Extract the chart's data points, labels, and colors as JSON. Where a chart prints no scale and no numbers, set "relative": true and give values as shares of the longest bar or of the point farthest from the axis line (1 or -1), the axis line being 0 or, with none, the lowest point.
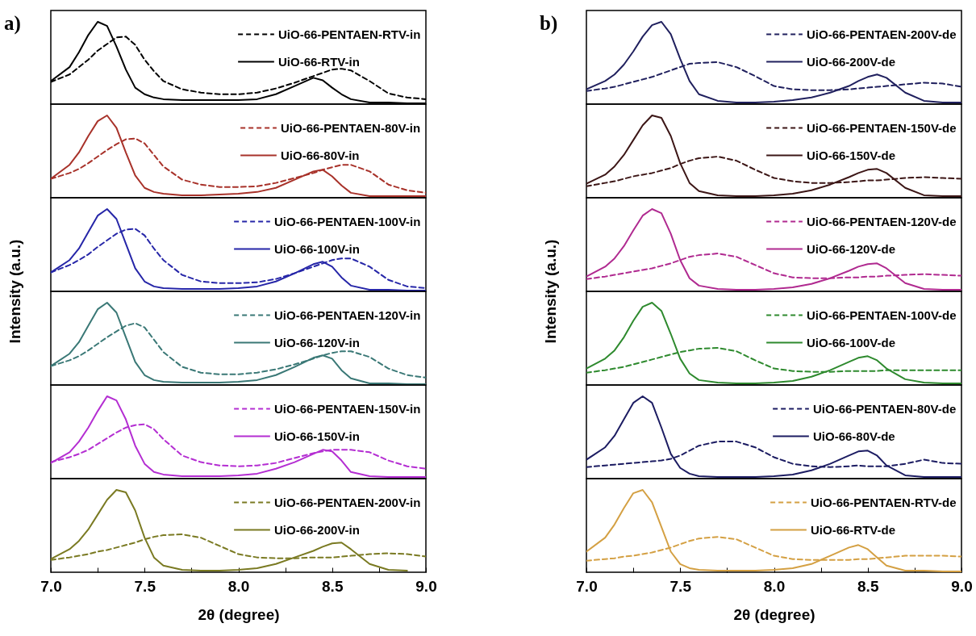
{
  "chart_data": [
    {
      "type": "line",
      "relative": true,
      "legend": "top right",
      "tick_labels": false,
      "xlim": [
        7.0,
        9.0
      ],
      "annotations": [
        "a)"
      ],
      "x": [
        7.0,
        7.1,
        7.15,
        7.2,
        7.25,
        7.3,
        7.35,
        7.4,
        7.45,
        7.5,
        7.55,
        7.6,
        7.7,
        7.8,
        7.9,
        8.0,
        8.1,
        8.2,
        8.3,
        8.4,
        8.45,
        8.5,
        8.55,
        8.6,
        8.7,
        8.8,
        8.9,
        9.0
      ],
      "series": [
        {
          "name": "UiO-66-PENTAEN-RTV-in",
          "color": "#000000",
          "line_style": "dashed",
          "values": [
            0.27,
            0.36,
            0.45,
            0.54,
            0.65,
            0.73,
            0.81,
            0.82,
            0.72,
            0.54,
            0.4,
            0.28,
            0.18,
            0.14,
            0.12,
            0.12,
            0.14,
            0.19,
            0.26,
            0.34,
            0.38,
            0.42,
            0.43,
            0.41,
            0.28,
            0.13,
            0.08,
            0.06
          ]
        },
        {
          "name": "UiO-66-RTV-in",
          "color": "#000000",
          "line_style": "solid",
          "values": [
            0.28,
            0.45,
            0.63,
            0.84,
            1.0,
            0.95,
            0.7,
            0.42,
            0.2,
            0.12,
            0.08,
            0.06,
            0.05,
            0.05,
            0.05,
            0.05,
            0.06,
            0.12,
            0.22,
            0.32,
            0.29,
            0.2,
            0.12,
            0.06,
            0.02,
            0.02,
            0.01,
            0.01
          ]
        }
      ]
    },
    {
      "type": "line",
      "relative": true,
      "legend": "top right",
      "tick_labels": false,
      "xlim": [
        7.0,
        9.0
      ],
      "x": [
        7.0,
        7.1,
        7.15,
        7.2,
        7.25,
        7.3,
        7.35,
        7.4,
        7.45,
        7.5,
        7.55,
        7.6,
        7.7,
        7.8,
        7.9,
        8.0,
        8.1,
        8.2,
        8.3,
        8.4,
        8.45,
        8.5,
        8.55,
        8.6,
        8.7,
        8.8,
        8.9,
        9.0
      ],
      "series": [
        {
          "name": "UiO-66-PENTAEN-80V-in",
          "color": "#a8322a",
          "line_style": "dashed",
          "values": [
            0.23,
            0.3,
            0.35,
            0.42,
            0.5,
            0.58,
            0.65,
            0.71,
            0.72,
            0.66,
            0.52,
            0.38,
            0.22,
            0.16,
            0.13,
            0.13,
            0.14,
            0.18,
            0.24,
            0.3,
            0.34,
            0.37,
            0.4,
            0.4,
            0.32,
            0.16,
            0.09,
            0.06
          ]
        },
        {
          "name": "UiO-66-80V-in",
          "color": "#a8322a",
          "line_style": "solid",
          "values": [
            0.23,
            0.4,
            0.55,
            0.75,
            0.93,
            1.0,
            0.85,
            0.55,
            0.27,
            0.12,
            0.07,
            0.05,
            0.03,
            0.03,
            0.04,
            0.05,
            0.07,
            0.12,
            0.22,
            0.32,
            0.34,
            0.26,
            0.15,
            0.06,
            0.02,
            0.02,
            0.02,
            0.02
          ]
        }
      ]
    },
    {
      "type": "line",
      "relative": true,
      "legend": "top right",
      "tick_labels": false,
      "xlim": [
        7.0,
        9.0
      ],
      "ylabel": "Intensity (a.u.)",
      "x": [
        7.0,
        7.1,
        7.15,
        7.2,
        7.25,
        7.3,
        7.35,
        7.4,
        7.45,
        7.5,
        7.55,
        7.6,
        7.7,
        7.8,
        7.9,
        8.0,
        8.1,
        8.2,
        8.3,
        8.4,
        8.45,
        8.5,
        8.55,
        8.6,
        8.7,
        8.8,
        8.9,
        9.0
      ],
      "series": [
        {
          "name": "UiO-66-PENTAEN-100V-in",
          "color": "#2626a8",
          "line_style": "dashed",
          "values": [
            0.23,
            0.32,
            0.38,
            0.45,
            0.54,
            0.62,
            0.7,
            0.75,
            0.76,
            0.68,
            0.52,
            0.38,
            0.2,
            0.12,
            0.1,
            0.1,
            0.11,
            0.15,
            0.22,
            0.3,
            0.34,
            0.38,
            0.4,
            0.4,
            0.3,
            0.14,
            0.06,
            0.04
          ]
        },
        {
          "name": "UiO-66-100V-in",
          "color": "#2626a8",
          "line_style": "solid",
          "values": [
            0.23,
            0.38,
            0.52,
            0.72,
            0.92,
            1.0,
            0.88,
            0.58,
            0.28,
            0.12,
            0.06,
            0.04,
            0.03,
            0.03,
            0.03,
            0.04,
            0.06,
            0.12,
            0.22,
            0.33,
            0.36,
            0.3,
            0.17,
            0.07,
            0.02,
            0.02,
            0.01,
            0.01
          ]
        }
      ]
    },
    {
      "type": "line",
      "relative": true,
      "legend": "top right",
      "tick_labels": false,
      "xlim": [
        7.0,
        9.0
      ],
      "x": [
        7.0,
        7.1,
        7.15,
        7.2,
        7.25,
        7.3,
        7.35,
        7.4,
        7.45,
        7.5,
        7.55,
        7.6,
        7.7,
        7.8,
        7.9,
        8.0,
        8.1,
        8.2,
        8.3,
        8.4,
        8.45,
        8.5,
        8.55,
        8.6,
        8.7,
        8.8,
        8.9,
        9.0
      ],
      "series": [
        {
          "name": "UiO-66-PENTAEN-120V-in",
          "color": "#3a7876",
          "line_style": "dashed",
          "values": [
            0.23,
            0.3,
            0.35,
            0.42,
            0.5,
            0.58,
            0.65,
            0.72,
            0.75,
            0.7,
            0.55,
            0.4,
            0.22,
            0.15,
            0.13,
            0.13,
            0.15,
            0.19,
            0.25,
            0.32,
            0.36,
            0.39,
            0.41,
            0.41,
            0.34,
            0.2,
            0.12,
            0.09
          ]
        },
        {
          "name": "UiO-66-120V-in",
          "color": "#3a7876",
          "line_style": "solid",
          "values": [
            0.23,
            0.38,
            0.52,
            0.72,
            0.92,
            1.0,
            0.88,
            0.58,
            0.28,
            0.12,
            0.06,
            0.04,
            0.03,
            0.03,
            0.03,
            0.04,
            0.06,
            0.12,
            0.22,
            0.33,
            0.36,
            0.32,
            0.18,
            0.08,
            0.02,
            0.02,
            0.01,
            0.01
          ]
        }
      ]
    },
    {
      "type": "line",
      "relative": true,
      "legend": "top right",
      "tick_labels": false,
      "xlim": [
        7.0,
        9.0
      ],
      "x": [
        7.0,
        7.1,
        7.15,
        7.2,
        7.25,
        7.3,
        7.35,
        7.4,
        7.45,
        7.5,
        7.55,
        7.6,
        7.7,
        7.8,
        7.9,
        8.0,
        8.1,
        8.2,
        8.3,
        8.4,
        8.45,
        8.5,
        8.55,
        8.6,
        8.7,
        8.8,
        8.9,
        9.0
      ],
      "series": [
        {
          "name": "UiO-66-PENTAEN-150V-in",
          "color": "#b42ed2",
          "line_style": "dashed",
          "values": [
            0.2,
            0.26,
            0.3,
            0.35,
            0.42,
            0.49,
            0.56,
            0.62,
            0.65,
            0.66,
            0.6,
            0.48,
            0.28,
            0.2,
            0.16,
            0.15,
            0.16,
            0.19,
            0.25,
            0.31,
            0.33,
            0.35,
            0.35,
            0.35,
            0.32,
            0.22,
            0.15,
            0.12
          ]
        },
        {
          "name": "UiO-66-150V-in",
          "color": "#b42ed2",
          "line_style": "solid",
          "values": [
            0.19,
            0.32,
            0.45,
            0.62,
            0.82,
            1.0,
            0.95,
            0.72,
            0.4,
            0.18,
            0.08,
            0.05,
            0.03,
            0.03,
            0.03,
            0.04,
            0.06,
            0.12,
            0.2,
            0.3,
            0.35,
            0.33,
            0.22,
            0.08,
            0.03,
            0.02,
            0.02,
            0.02
          ]
        }
      ]
    },
    {
      "type": "line",
      "relative": true,
      "legend": "top right",
      "tick_labels": "x",
      "xlim": [
        7.0,
        9.0
      ],
      "xlabel": "2θ (degree)",
      "xticks": [
        {
          "value": 7.0,
          "label": "7.0"
        },
        {
          "value": 7.25,
          "label": null
        },
        {
          "value": 7.5,
          "label": "7.5"
        },
        {
          "value": 7.75,
          "label": null
        },
        {
          "value": 8.0,
          "label": "8.0"
        },
        {
          "value": 8.25,
          "label": null
        },
        {
          "value": 8.5,
          "label": "8.5"
        },
        {
          "value": 8.75,
          "label": null
        },
        {
          "value": 9.0,
          "label": "9.0"
        }
      ],
      "x": [
        7.0,
        7.1,
        7.15,
        7.2,
        7.25,
        7.3,
        7.35,
        7.4,
        7.45,
        7.5,
        7.55,
        7.6,
        7.7,
        7.8,
        7.9,
        8.0,
        8.1,
        8.2,
        8.3,
        8.4,
        8.45,
        8.5,
        8.55,
        8.6,
        8.7,
        8.8,
        8.9,
        9.0
      ],
      "series": [
        {
          "name": "UiO-66-PENTAEN-200V-in",
          "color": "#7a7a22",
          "line_style": "dashed",
          "values": [
            0.15,
            0.18,
            0.2,
            0.22,
            0.25,
            0.27,
            0.3,
            0.33,
            0.36,
            0.4,
            0.43,
            0.45,
            0.46,
            0.42,
            0.32,
            0.22,
            0.18,
            0.17,
            0.17,
            0.18,
            0.18,
            0.18,
            0.19,
            0.2,
            0.22,
            0.23,
            0.22,
            0.19
          ]
        },
        {
          "name": "UiO-66-200V-in",
          "color": "#7a7a22",
          "line_style": "solid",
          "values": [
            0.16,
            0.28,
            0.38,
            0.52,
            0.7,
            0.88,
            1.0,
            0.97,
            0.75,
            0.42,
            0.18,
            0.08,
            0.03,
            0.02,
            0.02,
            0.03,
            0.05,
            0.1,
            0.18,
            0.26,
            0.31,
            0.35,
            0.36,
            0.28,
            0.1,
            0.03,
            0.02,
            null
          ]
        }
      ]
    },
    {
      "type": "line",
      "relative": true,
      "legend": "top right",
      "tick_labels": false,
      "xlim": [
        7.0,
        9.0
      ],
      "annotations": [
        "b)"
      ],
      "x": [
        7.0,
        7.1,
        7.15,
        7.2,
        7.25,
        7.3,
        7.35,
        7.4,
        7.45,
        7.5,
        7.55,
        7.6,
        7.7,
        7.8,
        7.9,
        8.0,
        8.1,
        8.2,
        8.3,
        8.4,
        8.45,
        8.5,
        8.55,
        8.6,
        8.7,
        8.8,
        8.9,
        9.0
      ],
      "series": [
        {
          "name": "UiO-66-PENTAEN-200V-de",
          "color": "#20205e",
          "line_style": "dashed",
          "values": [
            0.16,
            0.19,
            0.21,
            0.24,
            0.27,
            0.3,
            0.33,
            0.37,
            0.41,
            0.45,
            0.49,
            0.5,
            0.51,
            0.45,
            0.34,
            0.22,
            0.18,
            0.17,
            0.17,
            0.18,
            0.19,
            0.2,
            0.21,
            0.22,
            0.24,
            0.26,
            0.25,
            0.21
          ]
        },
        {
          "name": "UiO-66-200V-de",
          "color": "#20205e",
          "line_style": "solid",
          "values": [
            0.18,
            0.28,
            0.36,
            0.48,
            0.64,
            0.82,
            0.96,
            1.0,
            0.85,
            0.55,
            0.28,
            0.12,
            0.04,
            0.02,
            0.02,
            0.03,
            0.05,
            0.08,
            0.14,
            0.22,
            0.28,
            0.33,
            0.36,
            0.32,
            0.14,
            0.04,
            0.02,
            0.02
          ]
        }
      ]
    },
    {
      "type": "line",
      "relative": true,
      "legend": "top right",
      "tick_labels": false,
      "xlim": [
        7.0,
        9.0
      ],
      "x": [
        7.0,
        7.1,
        7.15,
        7.2,
        7.25,
        7.3,
        7.35,
        7.4,
        7.45,
        7.5,
        7.55,
        7.6,
        7.7,
        7.8,
        7.9,
        8.0,
        8.1,
        8.2,
        8.3,
        8.4,
        8.45,
        8.5,
        8.55,
        8.6,
        8.7,
        8.8,
        8.9,
        9.0
      ],
      "series": [
        {
          "name": "UiO-66-PENTAEN-150V-de",
          "color": "#3c1616",
          "line_style": "dashed",
          "values": [
            0.14,
            0.18,
            0.2,
            0.23,
            0.26,
            0.28,
            0.3,
            0.33,
            0.36,
            0.41,
            0.45,
            0.48,
            0.5,
            0.45,
            0.34,
            0.24,
            0.2,
            0.18,
            0.18,
            0.19,
            0.2,
            0.21,
            0.21,
            0.22,
            0.24,
            0.25,
            0.24,
            0.23
          ]
        },
        {
          "name": "UiO-66-150V-de",
          "color": "#3c1616",
          "line_style": "solid",
          "values": [
            0.17,
            0.28,
            0.38,
            0.52,
            0.7,
            0.88,
            1.0,
            0.97,
            0.75,
            0.42,
            0.18,
            0.08,
            0.03,
            0.02,
            0.02,
            0.03,
            0.05,
            0.09,
            0.16,
            0.25,
            0.3,
            0.34,
            0.35,
            0.3,
            0.12,
            0.03,
            0.02,
            0.02
          ]
        }
      ]
    },
    {
      "type": "line",
      "relative": true,
      "legend": "top right",
      "tick_labels": false,
      "xlim": [
        7.0,
        9.0
      ],
      "ylabel": "Intensity (a.u.)",
      "x": [
        7.0,
        7.1,
        7.15,
        7.2,
        7.25,
        7.3,
        7.35,
        7.4,
        7.45,
        7.5,
        7.55,
        7.6,
        7.7,
        7.8,
        7.9,
        8.0,
        8.1,
        8.2,
        8.3,
        8.4,
        8.45,
        8.5,
        8.55,
        8.6,
        8.7,
        8.8,
        8.9,
        9.0
      ],
      "series": [
        {
          "name": "UiO-66-PENTAEN-120V-de",
          "color": "#b02a90",
          "line_style": "dashed",
          "values": [
            0.15,
            0.18,
            0.2,
            0.22,
            0.24,
            0.26,
            0.28,
            0.31,
            0.34,
            0.38,
            0.42,
            0.44,
            0.46,
            0.42,
            0.32,
            0.22,
            0.17,
            0.16,
            0.16,
            0.17,
            0.17,
            0.18,
            0.18,
            0.19,
            0.2,
            0.21,
            0.2,
            0.19
          ]
        },
        {
          "name": "UiO-66-120V-de",
          "color": "#b02a90",
          "line_style": "solid",
          "values": [
            0.18,
            0.3,
            0.4,
            0.55,
            0.74,
            0.92,
            1.0,
            0.95,
            0.7,
            0.38,
            0.16,
            0.07,
            0.03,
            0.02,
            0.02,
            0.03,
            0.05,
            0.09,
            0.16,
            0.25,
            0.3,
            0.33,
            0.34,
            0.28,
            0.1,
            0.03,
            0.02,
            0.02
          ]
        }
      ]
    },
    {
      "type": "line",
      "relative": true,
      "legend": "top right",
      "tick_labels": false,
      "xlim": [
        7.0,
        9.0
      ],
      "x": [
        7.0,
        7.1,
        7.15,
        7.2,
        7.25,
        7.3,
        7.35,
        7.4,
        7.45,
        7.5,
        7.55,
        7.6,
        7.7,
        7.8,
        7.9,
        8.0,
        8.1,
        8.2,
        8.3,
        8.4,
        8.45,
        8.5,
        8.55,
        8.6,
        8.7,
        8.8,
        8.9,
        9.0
      ],
      "series": [
        {
          "name": "UiO-66-PENTAEN-100V-de",
          "color": "#2e8a2e",
          "line_style": "dashed",
          "values": [
            0.15,
            0.18,
            0.2,
            0.22,
            0.25,
            0.28,
            0.31,
            0.34,
            0.37,
            0.4,
            0.42,
            0.44,
            0.45,
            0.41,
            0.3,
            0.2,
            0.17,
            0.16,
            0.16,
            0.17,
            0.17,
            0.17,
            0.17,
            0.18,
            0.18,
            0.18,
            0.18,
            0.18
          ]
        },
        {
          "name": "UiO-66-100V-de",
          "color": "#2e8a2e",
          "line_style": "solid",
          "values": [
            0.2,
            0.32,
            0.42,
            0.58,
            0.78,
            0.95,
            1.0,
            0.9,
            0.62,
            0.32,
            0.14,
            0.06,
            0.03,
            0.02,
            0.02,
            0.03,
            0.05,
            0.1,
            0.18,
            0.28,
            0.33,
            0.35,
            0.3,
            0.2,
            0.07,
            0.03,
            0.02,
            0.02
          ]
        }
      ]
    },
    {
      "type": "line",
      "relative": true,
      "legend": "top right",
      "tick_labels": false,
      "xlim": [
        7.0,
        9.0
      ],
      "x": [
        7.0,
        7.1,
        7.15,
        7.2,
        7.25,
        7.3,
        7.35,
        7.4,
        7.45,
        7.5,
        7.55,
        7.6,
        7.7,
        7.8,
        7.9,
        8.0,
        8.1,
        8.2,
        8.3,
        8.4,
        8.45,
        8.5,
        8.55,
        8.6,
        8.7,
        8.8,
        8.9,
        9.0
      ],
      "series": [
        {
          "name": "UiO-66-PENTAEN-80V-de",
          "color": "#1c1c62",
          "line_style": "dashed",
          "values": [
            0.14,
            0.16,
            0.17,
            0.18,
            0.19,
            0.2,
            0.21,
            0.22,
            0.24,
            0.28,
            0.34,
            0.4,
            0.45,
            0.45,
            0.38,
            0.26,
            0.18,
            0.15,
            0.14,
            0.15,
            0.16,
            0.15,
            0.15,
            0.15,
            0.18,
            0.23,
            0.19,
            0.18
          ]
        },
        {
          "name": "UiO-66-80V-de",
          "color": "#1c1c62",
          "line_style": "solid",
          "values": [
            0.23,
            0.38,
            0.52,
            0.72,
            0.92,
            1.0,
            0.92,
            0.62,
            0.3,
            0.13,
            0.06,
            0.03,
            0.02,
            0.02,
            0.02,
            0.03,
            0.05,
            0.1,
            0.18,
            0.28,
            0.33,
            0.34,
            0.28,
            0.16,
            0.04,
            0.02,
            0.02,
            0.02
          ]
        }
      ]
    },
    {
      "type": "line",
      "relative": true,
      "legend": "top right",
      "tick_labels": "x",
      "xlim": [
        7.0,
        9.0
      ],
      "xlabel": "2θ (degree)",
      "xticks": [
        {
          "value": 7.0,
          "label": "7.0"
        },
        {
          "value": 7.25,
          "label": null
        },
        {
          "value": 7.5,
          "label": "7.5"
        },
        {
          "value": 7.75,
          "label": null
        },
        {
          "value": 8.0,
          "label": "8.0"
        },
        {
          "value": 8.25,
          "label": null
        },
        {
          "value": 8.5,
          "label": "8.5"
        },
        {
          "value": 8.75,
          "label": null
        },
        {
          "value": 9.0,
          "label": "9.0"
        }
      ],
      "x": [
        7.0,
        7.1,
        7.15,
        7.2,
        7.25,
        7.3,
        7.35,
        7.4,
        7.45,
        7.5,
        7.55,
        7.6,
        7.7,
        7.8,
        7.9,
        8.0,
        8.1,
        8.2,
        8.3,
        8.4,
        8.45,
        8.5,
        8.55,
        8.6,
        8.7,
        8.8,
        8.9,
        9.0
      ],
      "series": [
        {
          "name": "UiO-66-PENTAEN-RTV-de",
          "color": "#d4a043",
          "line_style": "dashed",
          "values": [
            0.14,
            0.16,
            0.17,
            0.19,
            0.2,
            0.22,
            0.24,
            0.27,
            0.3,
            0.34,
            0.38,
            0.41,
            0.43,
            0.4,
            0.3,
            0.2,
            0.16,
            0.15,
            0.15,
            0.15,
            0.16,
            0.16,
            0.17,
            0.18,
            0.2,
            0.2,
            0.2,
            0.19
          ]
        },
        {
          "name": "UiO-66-RTV-de",
          "color": "#d4a043",
          "line_style": "solid",
          "values": [
            0.25,
            0.42,
            0.58,
            0.78,
            0.96,
            1.0,
            0.85,
            0.55,
            0.25,
            0.1,
            0.05,
            0.03,
            0.02,
            0.02,
            0.02,
            0.03,
            0.05,
            0.1,
            0.2,
            0.3,
            0.33,
            0.28,
            0.18,
            0.08,
            0.02,
            0.02,
            0.01,
            0.01
          ]
        }
      ]
    }
  ]
}
